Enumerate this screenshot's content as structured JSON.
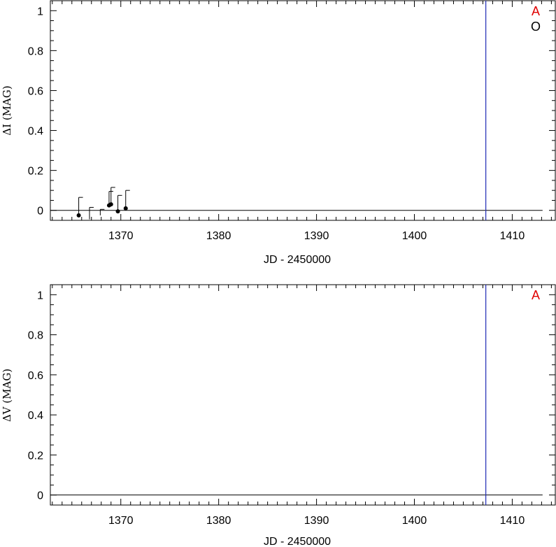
{
  "chart_data": [
    {
      "type": "scatter",
      "ylabel": "ΔI (MAG)",
      "xlabel": "JD - 2450000",
      "xlim": [
        1362.8,
        1414.4
      ],
      "ylim": [
        -0.05,
        1.05
      ],
      "x_ticks": [
        "1370",
        "1380",
        "1390",
        "1400",
        "1410"
      ],
      "y_ticks": [
        "0",
        "0.2",
        "0.4",
        "0.6",
        "0.8",
        "1"
      ],
      "baseline": {
        "y": 0,
        "x_range": [
          1362.8,
          1413.1
        ]
      },
      "vertical_line": {
        "x": 1407.3,
        "color": "#1f2ab5"
      },
      "legend": [
        {
          "label": "A",
          "color": "#e00000"
        },
        {
          "label": "O",
          "color": "#000000"
        }
      ],
      "series": [
        {
          "points": [
            {
              "x": 1365.7,
              "y": -0.025,
              "err": 0.09,
              "filled": true
            },
            {
              "x": 1366.8,
              "y": -0.015,
              "err": 0.03,
              "filled": false
            },
            {
              "x": 1367.9,
              "y": -0.01,
              "err": 0.015,
              "filled": false
            },
            {
              "x": 1368.8,
              "y": 0.025,
              "err": 0.07,
              "filled": true
            },
            {
              "x": 1369.0,
              "y": 0.03,
              "err": 0.085,
              "filled": true
            },
            {
              "x": 1369.7,
              "y": -0.005,
              "err": 0.08,
              "filled": true
            },
            {
              "x": 1370.5,
              "y": 0.01,
              "err": 0.09,
              "filled": true
            }
          ]
        }
      ]
    },
    {
      "type": "scatter",
      "ylabel": "ΔV (MAG)",
      "xlabel": "JD - 2450000",
      "xlim": [
        1362.8,
        1414.4
      ],
      "ylim": [
        -0.05,
        1.05
      ],
      "x_ticks": [
        "1370",
        "1380",
        "1390",
        "1400",
        "1410"
      ],
      "y_ticks": [
        "0",
        "0.2",
        "0.4",
        "0.6",
        "0.8",
        "1"
      ],
      "baseline": {
        "y": 0,
        "x_range": [
          1362.8,
          1413.1
        ]
      },
      "vertical_line": {
        "x": 1407.3,
        "color": "#1f2ab5"
      },
      "legend": [
        {
          "label": "A",
          "color": "#e00000"
        }
      ],
      "series": []
    }
  ]
}
